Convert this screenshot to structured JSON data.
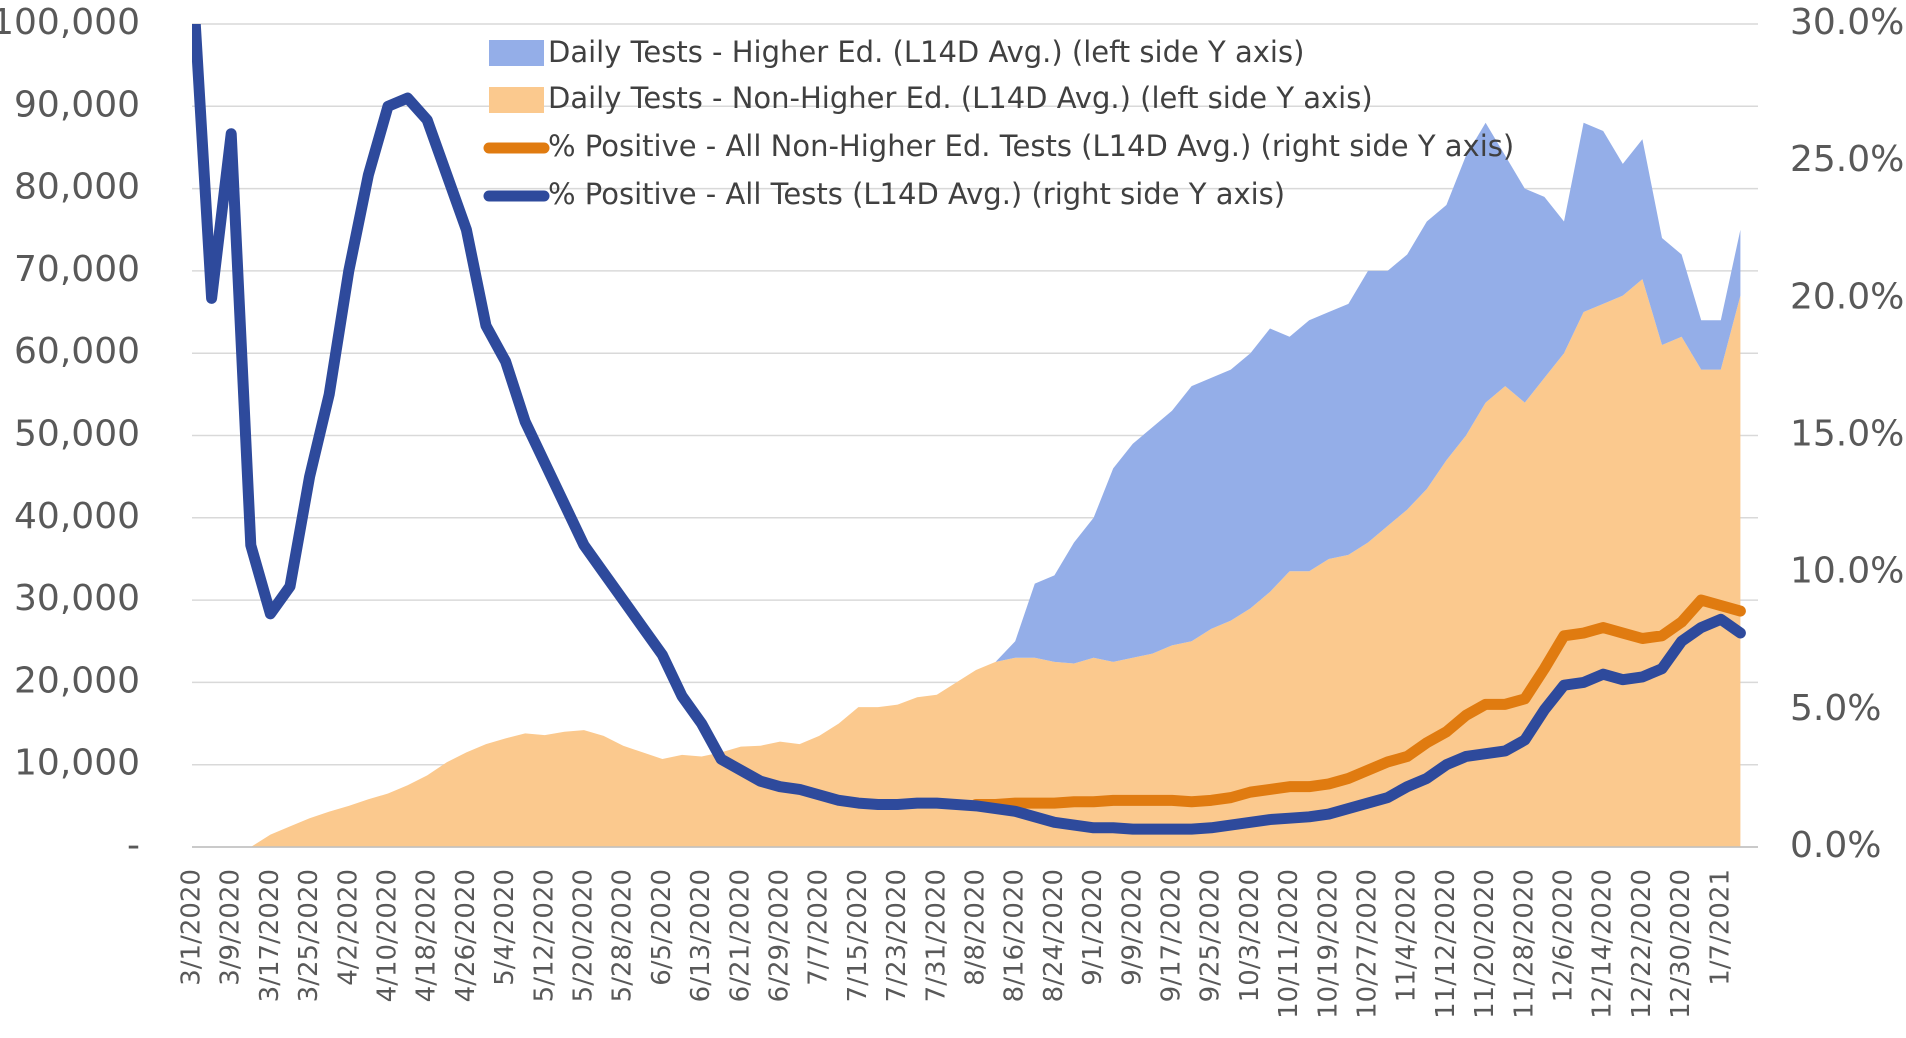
{
  "chart_data": {
    "type": "combo",
    "categories": [
      "3/1/2020",
      null,
      "3/9/2020",
      null,
      "3/17/2020",
      null,
      "3/25/2020",
      null,
      "4/2/2020",
      null,
      "4/10/2020",
      null,
      "4/18/2020",
      null,
      "4/26/2020",
      null,
      "5/4/2020",
      null,
      "5/12/2020",
      null,
      "5/20/2020",
      null,
      "5/28/2020",
      null,
      "6/5/2020",
      null,
      "6/13/2020",
      null,
      "6/21/2020",
      null,
      "6/29/2020",
      null,
      "7/7/2020",
      null,
      "7/15/2020",
      null,
      "7/23/2020",
      null,
      "7/31/2020",
      null,
      "8/8/2020",
      null,
      "8/16/2020",
      null,
      "8/24/2020",
      null,
      "9/1/2020",
      null,
      "9/9/2020",
      null,
      "9/17/2020",
      null,
      "9/25/2020",
      null,
      "10/3/2020",
      null,
      "10/11/2020",
      null,
      "10/19/2020",
      null,
      "10/27/2020",
      null,
      "11/4/2020",
      null,
      "11/12/2020",
      null,
      "11/20/2020",
      null,
      "11/28/2020",
      null,
      "12/6/2020",
      null,
      "12/14/2020",
      null,
      "12/22/2020",
      null,
      "12/30/2020",
      null,
      "1/7/2021",
      null
    ],
    "series": [
      {
        "name": "Daily Tests - Higher Ed. (L14D Avg.) (left side Y axis)",
        "type": "area",
        "color": "#94aee8",
        "values": [
          0,
          0,
          0,
          0,
          0,
          0,
          0,
          0,
          0,
          0,
          0,
          0,
          0,
          0,
          0,
          0,
          0,
          0,
          0,
          0,
          0,
          0,
          0,
          0,
          0,
          0,
          0,
          0,
          0,
          0,
          0,
          0,
          0,
          0,
          0,
          0,
          0,
          0,
          0,
          0,
          0,
          0,
          2000,
          9000,
          10500,
          14700,
          17000,
          23500,
          26000,
          27500,
          28500,
          31000,
          30500,
          30500,
          31000,
          32000,
          28500,
          30500,
          30000,
          30500,
          33000,
          31000,
          31000,
          32500,
          31000,
          34000,
          34000,
          28000,
          26000,
          22000,
          16000,
          23000,
          21000,
          16000,
          17000,
          13000,
          10000,
          6000,
          6000,
          8000
        ]
      },
      {
        "name": "Daily Tests - Non-Higher Ed. (L14D Avg.) (left side Y axis)",
        "type": "area",
        "color": "#fbc98e",
        "values": [
          0,
          0,
          0,
          0,
          1500,
          2500,
          3500,
          4300,
          5000,
          5800,
          6500,
          7500,
          8700,
          10300,
          11500,
          12500,
          13200,
          13800,
          13600,
          14000,
          14200,
          13500,
          12300,
          11500,
          10700,
          11200,
          11000,
          11500,
          12200,
          12300,
          12800,
          12500,
          13500,
          15000,
          17000,
          17000,
          17300,
          18200,
          18500,
          20000,
          21500,
          22500,
          23000,
          23000,
          22500,
          22300,
          23000,
          22500,
          23000,
          23500,
          24500,
          25000,
          26500,
          27500,
          29000,
          31000,
          33500,
          33500,
          35000,
          35500,
          37000,
          39000,
          41000,
          43500,
          47000,
          50000,
          54000,
          56000,
          54000,
          57000,
          60000,
          65000,
          66000,
          67000,
          69000,
          61000,
          62000,
          58000,
          58000,
          67000
        ]
      },
      {
        "name": "% Positive - All Non-Higher Ed. Tests (L14D Avg.) (right side Y axis)",
        "type": "line",
        "axis": "y2",
        "color": "#e07b10",
        "values": [
          null,
          null,
          null,
          null,
          null,
          null,
          null,
          null,
          null,
          null,
          null,
          null,
          null,
          null,
          null,
          null,
          null,
          null,
          null,
          null,
          null,
          null,
          null,
          null,
          null,
          null,
          null,
          null,
          null,
          null,
          null,
          null,
          null,
          null,
          null,
          null,
          null,
          null,
          null,
          null,
          1.55,
          1.55,
          1.6,
          1.6,
          1.6,
          1.65,
          1.65,
          1.7,
          1.7,
          1.7,
          1.7,
          1.65,
          1.7,
          1.8,
          2,
          2.1,
          2.2,
          2.2,
          2.3,
          2.5,
          2.8,
          3.1,
          3.3,
          3.8,
          4.2,
          4.8,
          5.2,
          5.2,
          5.4,
          6.5,
          7.7,
          7.8,
          8,
          7.8,
          7.6,
          7.7,
          8.2,
          9,
          8.8,
          8.6
        ]
      },
      {
        "name": "% Positive - All Tests (L14D Avg.) (right side Y axis)",
        "type": "line",
        "axis": "y2",
        "color": "#2e4a9c",
        "values": [
          32,
          20,
          26,
          11,
          8.5,
          9.5,
          13.5,
          16.5,
          21,
          24.5,
          27,
          27.3,
          26.5,
          24.5,
          22.5,
          19,
          17.7,
          15.5,
          14,
          12.5,
          11,
          10,
          9,
          8,
          7,
          5.5,
          4.5,
          3.2,
          2.8,
          2.4,
          2.2,
          2.1,
          1.9,
          1.7,
          1.6,
          1.55,
          1.55,
          1.6,
          1.6,
          1.55,
          1.5,
          1.4,
          1.3,
          1.1,
          0.9,
          0.8,
          0.7,
          0.7,
          0.65,
          0.65,
          0.65,
          0.65,
          0.7,
          0.8,
          0.9,
          1,
          1.05,
          1.1,
          1.2,
          1.4,
          1.6,
          1.8,
          2.2,
          2.5,
          3,
          3.3,
          3.4,
          3.5,
          3.9,
          5,
          5.9,
          6,
          6.3,
          6.1,
          6.2,
          6.5,
          7.5,
          8,
          8.3,
          7.8
        ]
      }
    ],
    "ylim": [
      0,
      100000
    ],
    "yticks": [
      {
        "value": 0,
        "label": "-"
      },
      {
        "value": 10000,
        "label": "10,000"
      },
      {
        "value": 20000,
        "label": "20,000"
      },
      {
        "value": 30000,
        "label": "30,000"
      },
      {
        "value": 40000,
        "label": "40,000"
      },
      {
        "value": 50000,
        "label": "50,000"
      },
      {
        "value": 60000,
        "label": "60,000"
      },
      {
        "value": 70000,
        "label": "70,000"
      },
      {
        "value": 80000,
        "label": "80,000"
      },
      {
        "value": 90000,
        "label": "90,000"
      },
      {
        "value": 100000,
        "label": "100,000"
      }
    ],
    "y2lim": [
      0,
      30
    ],
    "y2ticks": [
      {
        "value": 0,
        "label": "0.0%"
      },
      {
        "value": 5,
        "label": "5.0%"
      },
      {
        "value": 10,
        "label": "10.0%"
      },
      {
        "value": 15,
        "label": "15.0%"
      },
      {
        "value": 20,
        "label": "20.0%"
      },
      {
        "value": 25,
        "label": "25.0%"
      },
      {
        "value": 30,
        "label": "30.0%"
      }
    ],
    "grid": true
  }
}
